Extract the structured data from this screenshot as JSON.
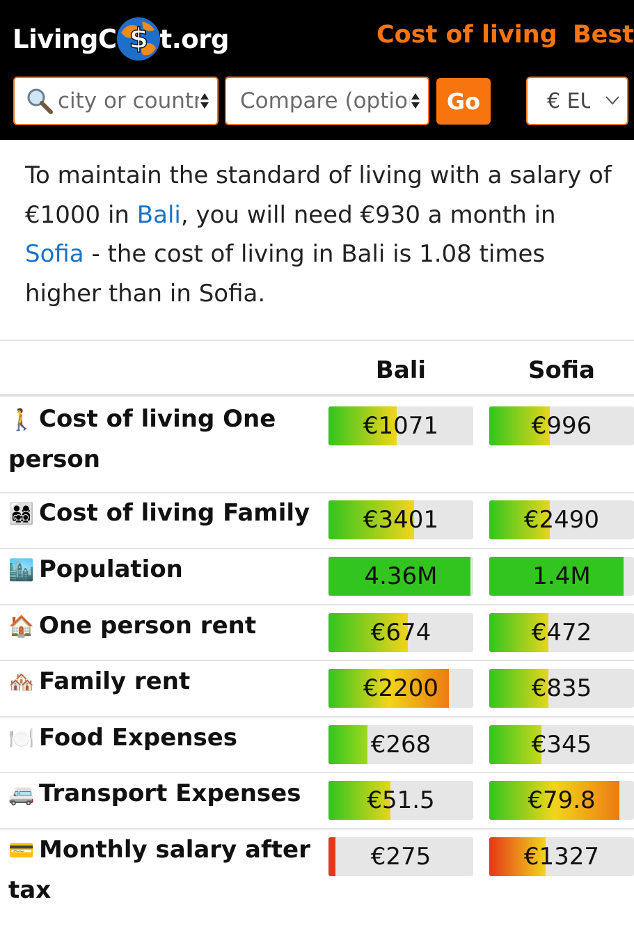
{
  "header": {
    "logo_left": "LivingC",
    "logo_right": "t.org",
    "nav": [
      "Cost of living",
      "Best"
    ],
    "search": {
      "placeholder": "city or country"
    },
    "compare": {
      "placeholder": "Compare (optional)"
    },
    "go_label": "Go",
    "currency": {
      "selected": "€ EUR"
    }
  },
  "intro": {
    "p1": "To maintain the standard of living with a salary of €1000 in ",
    "city1": "Bali",
    "p2": ", you will need €930 a month in ",
    "city2": "Sofia",
    "p3": " - the cost of living in Bali is 1.08 times higher than in Sofia."
  },
  "table": {
    "columns": [
      "Bali",
      "Sofia"
    ],
    "rows": [
      {
        "icon": "🚶",
        "label": "Cost of living One person",
        "values": [
          "€1071",
          "€996"
        ],
        "fills": [
          0.47,
          0.42
        ],
        "colors": [
          [
            "#32c51f",
            "#f2d51b"
          ],
          [
            "#32c51f",
            "#e5d61b"
          ]
        ]
      },
      {
        "icon": "👨‍👩‍👧‍👦",
        "label": "Cost of living Family",
        "values": [
          "€3401",
          "€2490"
        ],
        "fills": [
          0.59,
          0.42
        ],
        "colors": [
          [
            "#32c51f",
            "#f2d51b"
          ],
          [
            "#32c51f",
            "#e5d61b"
          ]
        ]
      },
      {
        "icon": "🏙️",
        "label": "Population",
        "values": [
          "4.36M",
          "1.4M"
        ],
        "fills": [
          0.98,
          0.93
        ],
        "colors": [
          [
            "#32c51f",
            "#32c51f"
          ],
          [
            "#32c51f",
            "#32c51f"
          ]
        ]
      },
      {
        "icon": "🏠",
        "label": "One person rent",
        "values": [
          "€674",
          "€472"
        ],
        "fills": [
          0.55,
          0.41
        ],
        "colors": [
          [
            "#32c51f",
            "#f2d51b"
          ],
          [
            "#32c51f",
            "#e5d61b"
          ]
        ]
      },
      {
        "icon": "🏘️",
        "label": "Family rent",
        "values": [
          "€2200",
          "€835"
        ],
        "fills": [
          0.83,
          0.41
        ],
        "colors": [
          [
            "#32c51f",
            "#f2d51b",
            "#ee7a12"
          ],
          [
            "#32c51f",
            "#e5d61b"
          ]
        ]
      },
      {
        "icon": "🍽️",
        "label": "Food Expenses",
        "values": [
          "€268",
          "€345"
        ],
        "fills": [
          0.27,
          0.36
        ],
        "colors": [
          [
            "#32c51f",
            "#9fd81c"
          ],
          [
            "#32c51f",
            "#c8d81b"
          ]
        ]
      },
      {
        "icon": "🚐",
        "label": "Transport Expenses",
        "values": [
          "€51.5",
          "€79.8"
        ],
        "fills": [
          0.43,
          0.9
        ],
        "colors": [
          [
            "#32c51f",
            "#e5d61b"
          ],
          [
            "#32c51f",
            "#f2d51b",
            "#ee7a12"
          ]
        ]
      },
      {
        "icon": "💳",
        "label": "Monthly salary after tax",
        "values": [
          "€275",
          "€1327"
        ],
        "fills": [
          0.05,
          0.39
        ],
        "colors": [
          [
            "#e4381a",
            "#e4381a"
          ],
          [
            "#e4381a",
            "#f2d51b"
          ]
        ]
      }
    ]
  },
  "colors": {
    "brand_orange": "#f7740e",
    "link_blue": "#1a73c8",
    "header_bg": "#000000"
  }
}
